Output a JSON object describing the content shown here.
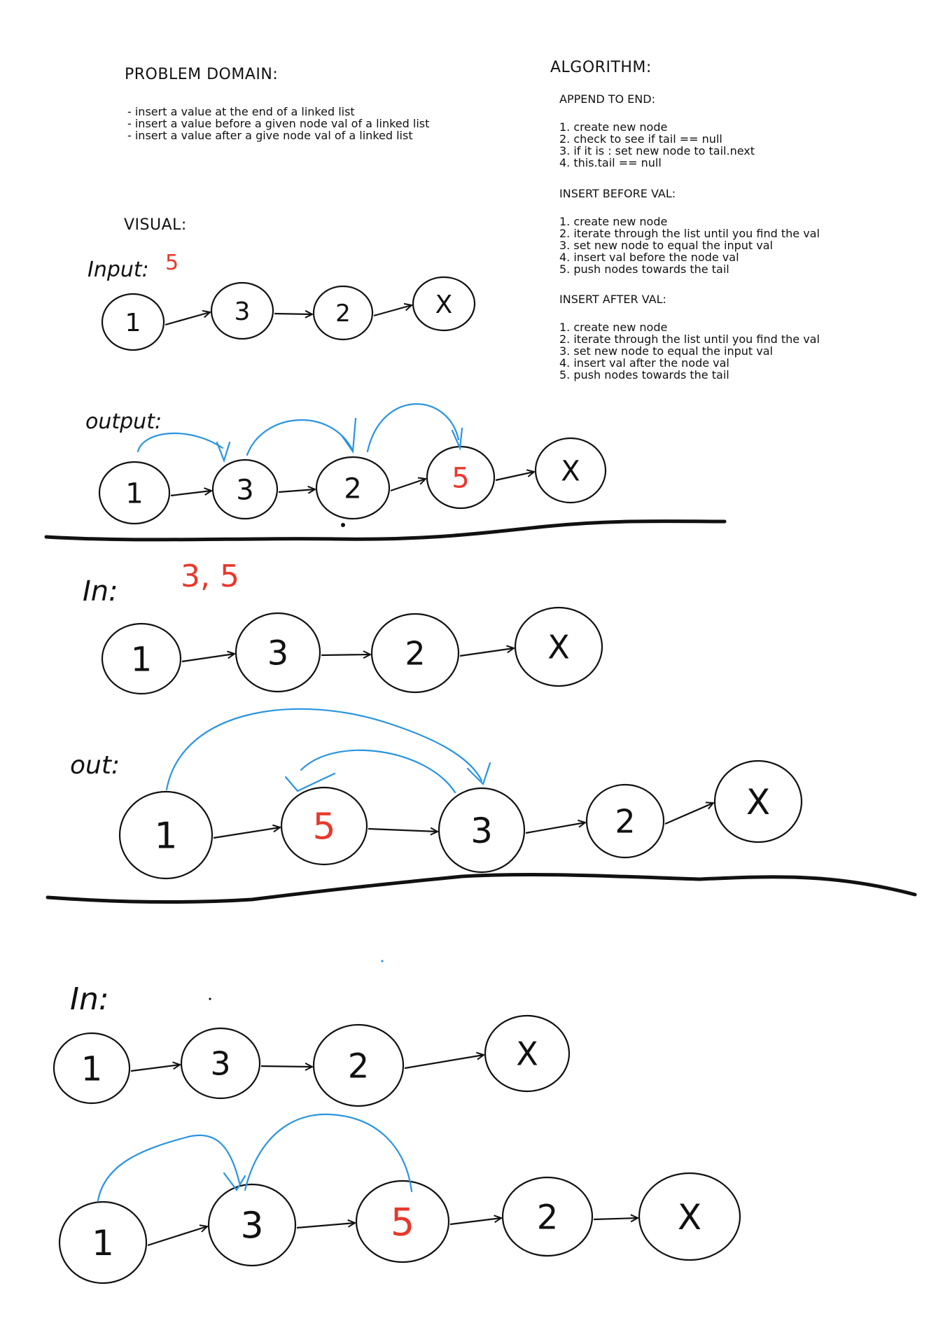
{
  "problem_domain": {
    "title": "PROBLEM DOMAIN:",
    "items": [
      "- insert a value at the end of a linked list",
      "- insert a value before a given node val of a linked list",
      "- insert a value after a give node val of a linked list"
    ]
  },
  "algorithm": {
    "title": "ALGORITHM:",
    "sections": [
      {
        "title": "APPEND TO END:",
        "steps": [
          "1. create new node",
          "2. check to see if tail == null",
          "3. if it is : set new node to tail.next",
          "4. this.tail  == null"
        ]
      },
      {
        "title": "INSERT BEFORE VAL:",
        "steps": [
          "1. create new node",
          "2. iterate through the list until you find the val",
          "3. set new node to equal the input val",
          "4. insert val before the node val",
          "5. push nodes towards the tail"
        ]
      },
      {
        "title": "INSERT AFTER VAL:",
        "steps": [
          "1. create new node",
          "2. iterate through the list until you find the val",
          "3. set new node to equal the input val",
          "4. insert val after the node val",
          "5. push nodes towards the tail"
        ]
      }
    ]
  },
  "visual": {
    "title": "VISUAL:",
    "diagram1": {
      "input_label": "Input:",
      "input_value": "5",
      "input_nodes": [
        "1",
        "3",
        "2",
        "X"
      ],
      "output_label": "output:",
      "output_nodes": [
        "1",
        "3",
        "2",
        "5",
        "X"
      ]
    },
    "diagram2": {
      "input_label": "In:",
      "input_values": "3, 5",
      "input_nodes": [
        "1",
        "3",
        "2",
        "X"
      ],
      "output_label": "out:",
      "output_nodes": [
        "1",
        "5",
        "3",
        "2",
        "X"
      ]
    },
    "diagram3": {
      "input_label": "In:",
      "input_nodes": [
        "1",
        "3",
        "2",
        "X"
      ],
      "output_nodes": [
        "1",
        "3",
        "5",
        "2",
        "X"
      ]
    }
  },
  "colors": {
    "ink": "#111111",
    "highlight": "#e8382c",
    "arc": "#2a94e0"
  }
}
